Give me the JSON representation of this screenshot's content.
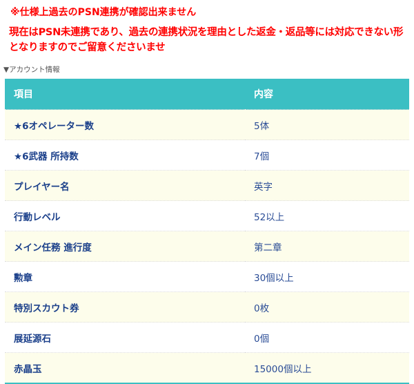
{
  "notice": {
    "title": "※仕様上過去のPSN連携が確認出来ません",
    "body": "現在はPSN未連携であり、過去の連携状況を理由とした返金・返品等には対応できない形となりますのでご留意くださいませ"
  },
  "section_label": "▼アカウント情報",
  "table": {
    "headers": [
      "項目",
      "内容"
    ],
    "rows": [
      {
        "item": "★6オペレーター数",
        "value": "5体"
      },
      {
        "item": "★6武器 所持数",
        "value": "7個"
      },
      {
        "item": "プレイヤー名",
        "value": "英字"
      },
      {
        "item": "行動レベル",
        "value": "52以上"
      },
      {
        "item": "メイン任務 進行度",
        "value": "第二章"
      },
      {
        "item": "勲章",
        "value": "30個以上"
      },
      {
        "item": "特別スカウト券",
        "value": "0枚"
      },
      {
        "item": "展延源石",
        "value": "0個"
      },
      {
        "item": "赤晶玉",
        "value": "15000個以上"
      }
    ]
  },
  "colors": {
    "notice": "#ff0000",
    "header_bg": "#3bbfc3",
    "row_alt": "#fdfdeb",
    "item_text": "#1a3f8a"
  }
}
